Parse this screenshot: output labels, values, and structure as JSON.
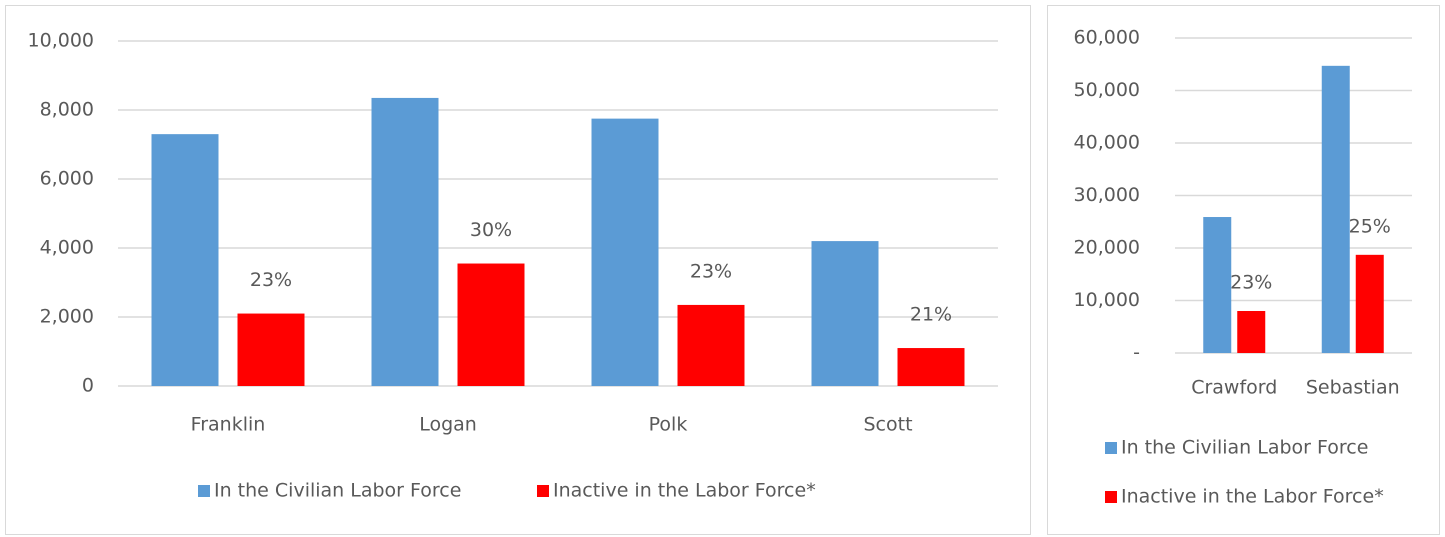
{
  "chart_data": [
    {
      "type": "bar",
      "categories": [
        "Franklin",
        "Logan",
        "Polk",
        "Scott"
      ],
      "series": [
        {
          "name": "In the Civilian Labor Force",
          "color": "#5b9bd5",
          "values": [
            7300,
            8350,
            7750,
            4200
          ]
        },
        {
          "name": "Inactive in the Labor Force*",
          "color": "#ff0000",
          "values": [
            2100,
            3550,
            2350,
            1100
          ],
          "labels": [
            "23%",
            "30%",
            "23%",
            "21%"
          ]
        }
      ],
      "ylim": [
        0,
        10000
      ],
      "yticks": [
        0,
        {
          "value": 2000,
          "label": "2,000"
        },
        {
          "value": 4000,
          "label": "4,000"
        },
        {
          "value": 6000,
          "label": "6,000"
        },
        {
          "value": 8000,
          "label": "8,000"
        },
        {
          "value": 10000,
          "label": "10,000"
        }
      ],
      "grid": true,
      "legend": "bottom"
    },
    {
      "type": "bar",
      "categories": [
        "Crawford",
        "Sebastian"
      ],
      "series": [
        {
          "name": "In the Civilian Labor Force",
          "color": "#5b9bd5",
          "values": [
            25900,
            54700
          ]
        },
        {
          "name": "Inactive in the Labor Force*",
          "color": "#ff0000",
          "values": [
            8000,
            18700
          ],
          "labels": [
            "23%",
            "25%"
          ]
        }
      ],
      "ylim": [
        0,
        60000
      ],
      "yticks": [
        {
          "value": 0,
          "label": "-"
        },
        {
          "value": 10000,
          "label": "10,000"
        },
        {
          "value": 20000,
          "label": "20,000"
        },
        {
          "value": 30000,
          "label": "30,000"
        },
        {
          "value": 40000,
          "label": "40,000"
        },
        {
          "value": 50000,
          "label": "50,000"
        },
        {
          "value": 60000,
          "label": "60,000"
        }
      ],
      "grid": true,
      "legend": "bottom"
    }
  ]
}
